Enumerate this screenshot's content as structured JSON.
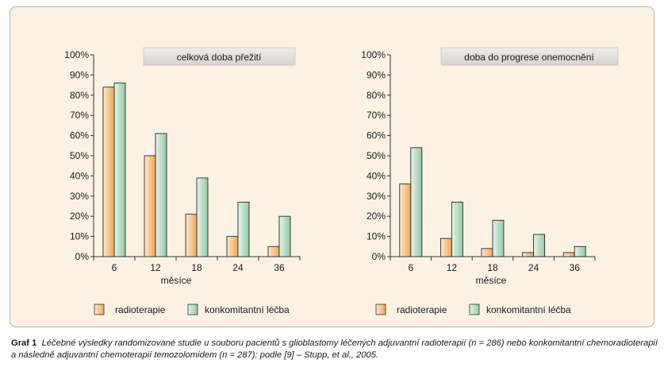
{
  "chart_data": [
    {
      "type": "bar",
      "title": "celková doba přežití",
      "xlabel": "měsíce",
      "ylabel": "",
      "categories": [
        "6",
        "12",
        "18",
        "24",
        "36"
      ],
      "yticks": [
        "0%",
        "10%",
        "20%",
        "30%",
        "40%",
        "50%",
        "60%",
        "70%",
        "80%",
        "90%",
        "100%"
      ],
      "ylim": [
        0,
        100
      ],
      "series": [
        {
          "name": "radioterapie",
          "values": [
            84,
            50,
            21,
            10,
            5
          ]
        },
        {
          "name": "konkomitantní léčba",
          "values": [
            86,
            61,
            39,
            27,
            20
          ]
        }
      ],
      "legend_position": "bottom",
      "grid": false
    },
    {
      "type": "bar",
      "title": "doba do progrese onemocnění",
      "xlabel": "měsíce",
      "ylabel": "",
      "categories": [
        "6",
        "12",
        "18",
        "24",
        "36"
      ],
      "yticks": [
        "0%",
        "10%",
        "20%",
        "30%",
        "40%",
        "50%",
        "60%",
        "70%",
        "80%",
        "90%",
        "100%"
      ],
      "ylim": [
        0,
        100
      ],
      "series": [
        {
          "name": "radioterapie",
          "values": [
            36,
            9,
            4,
            2,
            2
          ]
        },
        {
          "name": "konkomitantní léčba",
          "values": [
            54,
            27,
            18,
            11,
            5
          ]
        }
      ],
      "legend_position": "bottom",
      "grid": false
    }
  ],
  "colors": {
    "radioterapie": "#f4b56a",
    "konkomitantni": "#a9d6b7",
    "panel_background": "#fbf2e3",
    "title_box": "#e3e1df"
  },
  "caption": {
    "label": "Graf 1",
    "text": "Léčebné výsledky randomizované studie u souboru pacientů s glioblastomy léčených adjuvantní radioterapií (n = 286) nebo konkomitantní chemoradioterapií a následně adjuvantní chemoterapií temozolomidem (n = 287); podle [9] – Stupp, et al., 2005."
  }
}
